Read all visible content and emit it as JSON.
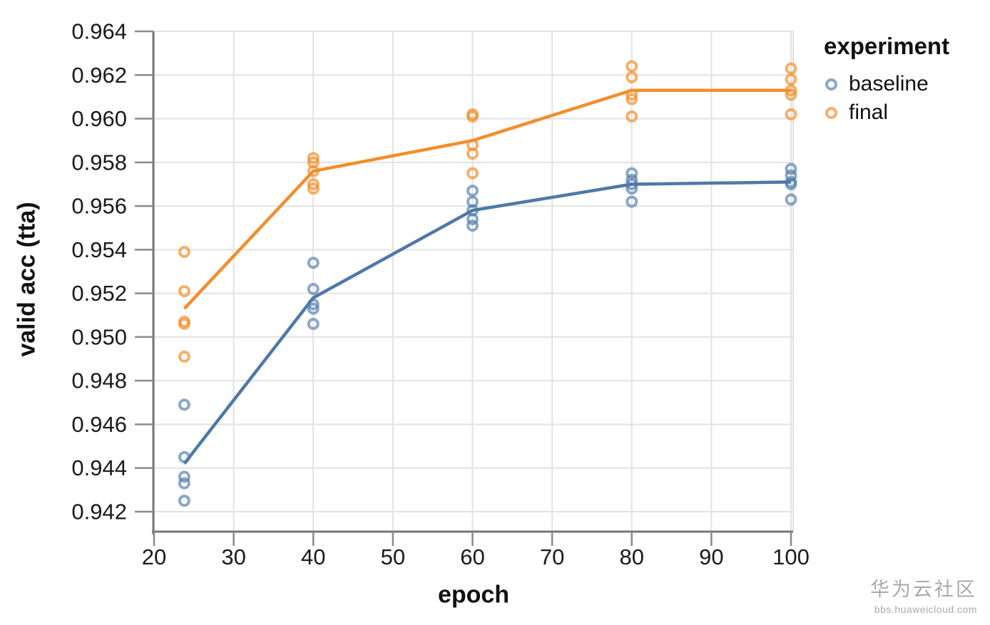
{
  "watermark": {
    "line1": "华为云社区",
    "line2": "bbs.huaweicloud.com"
  },
  "chart_data": {
    "type": "scatter",
    "title": "",
    "xlabel": "epoch",
    "ylabel": "valid acc (tta)",
    "x_ticks": [
      20,
      30,
      40,
      50,
      60,
      70,
      80,
      90,
      100
    ],
    "y_ticks": [
      "0.942",
      "0.944",
      "0.946",
      "0.948",
      "0.950",
      "0.952",
      "0.954",
      "0.956",
      "0.958",
      "0.960",
      "0.962",
      "0.964"
    ],
    "x_domain": [
      19.9,
      100.3
    ],
    "y_domain": [
      0.9411,
      0.964
    ],
    "grid": true,
    "legend": {
      "title": "experiment",
      "position": "top-right",
      "entries": [
        {
          "label": "baseline",
          "color": "#4E79A7"
        },
        {
          "label": "final",
          "color": "#F28E2B"
        }
      ]
    },
    "series": [
      {
        "name": "baseline",
        "line_color": "#4E79A7",
        "point_color": "rgba(78,121,167,0.65)",
        "clusters": [
          {
            "x": 23.8,
            "points": [
              0.9469,
              0.9445,
              0.9436,
              0.9433,
              0.9425
            ],
            "mean": 0.9442
          },
          {
            "x": 40,
            "points": [
              0.9534,
              0.9522,
              0.9515,
              0.9513,
              0.9506
            ],
            "mean": 0.9518
          },
          {
            "x": 60,
            "points": [
              0.9567,
              0.9562,
              0.9558,
              0.9554,
              0.9551
            ],
            "mean": 0.9558
          },
          {
            "x": 80,
            "points": [
              0.9575,
              0.9572,
              0.957,
              0.9568,
              0.9562
            ],
            "mean": 0.957
          },
          {
            "x": 100,
            "points": [
              0.9577,
              0.9574,
              0.9571,
              0.957,
              0.9563
            ],
            "mean": 0.9571
          }
        ]
      },
      {
        "name": "final",
        "line_color": "#F28E2B",
        "point_color": "rgba(242,142,43,0.7)",
        "clusters": [
          {
            "x": 23.8,
            "points": [
              0.9539,
              0.9521,
              0.9507,
              0.9506,
              0.9491
            ],
            "mean": 0.9513
          },
          {
            "x": 40,
            "points": [
              0.9582,
              0.958,
              0.9576,
              0.957,
              0.9568
            ],
            "mean": 0.9576
          },
          {
            "x": 60,
            "points": [
              0.9602,
              0.9601,
              0.9588,
              0.9584,
              0.9575
            ],
            "mean": 0.959
          },
          {
            "x": 80,
            "points": [
              0.9624,
              0.9619,
              0.9611,
              0.9609,
              0.9601
            ],
            "mean": 0.9613
          },
          {
            "x": 100,
            "points": [
              0.9623,
              0.9618,
              0.9613,
              0.9611,
              0.9602
            ],
            "mean": 0.9613
          }
        ]
      }
    ]
  }
}
